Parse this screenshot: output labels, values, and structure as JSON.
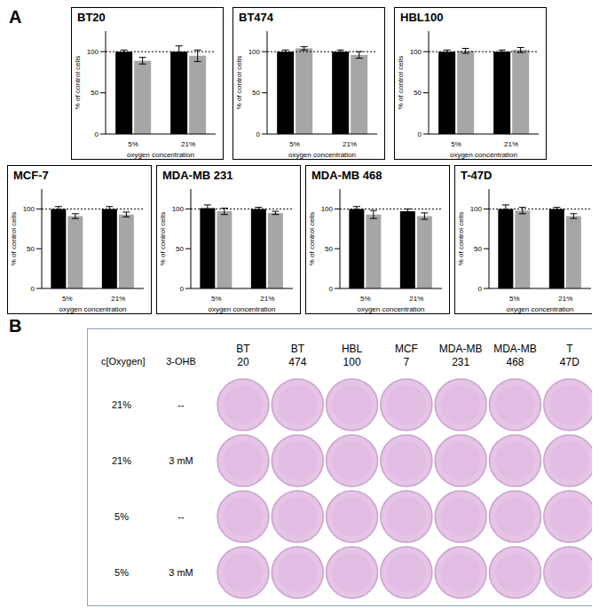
{
  "panel_labels": [
    "A",
    "B"
  ],
  "chart_data": [
    {
      "type": "bar",
      "title": "BT20",
      "categories": [
        "5%",
        "21%"
      ],
      "series": [
        {
          "color": "#000000",
          "values": [
            100,
            100
          ],
          "errors": [
            2,
            7
          ]
        },
        {
          "color": "#a6a6a6",
          "values": [
            89,
            95
          ],
          "errors": [
            4,
            7
          ]
        }
      ],
      "ylim": [
        0,
        125
      ],
      "yticks": [
        0,
        50,
        100
      ],
      "ylabel": "% of control cells",
      "xlabel": "oxygen concentration",
      "reference_line": 100
    },
    {
      "type": "bar",
      "title": "BT474",
      "categories": [
        "5%",
        "21%"
      ],
      "series": [
        {
          "color": "#000000",
          "values": [
            100,
            100
          ],
          "errors": [
            2,
            2
          ]
        },
        {
          "color": "#a6a6a6",
          "values": [
            104,
            96
          ],
          "errors": [
            2,
            4
          ]
        }
      ],
      "ylim": [
        0,
        125
      ],
      "yticks": [
        0,
        50,
        100
      ],
      "ylabel": "% of control cells",
      "xlabel": "oxygen concentration",
      "reference_line": 100
    },
    {
      "type": "bar",
      "title": "HBL100",
      "categories": [
        "5%",
        "21%"
      ],
      "series": [
        {
          "color": "#000000",
          "values": [
            100,
            100
          ],
          "errors": [
            2,
            2
          ]
        },
        {
          "color": "#a6a6a6",
          "values": [
            101,
            102
          ],
          "errors": [
            3,
            3
          ]
        }
      ],
      "ylim": [
        0,
        125
      ],
      "yticks": [
        0,
        50,
        100
      ],
      "ylabel": "% of control cells",
      "xlabel": "oxygen concentration",
      "reference_line": 100
    },
    {
      "type": "bar",
      "title": "MCF-7",
      "categories": [
        "5%",
        "21%"
      ],
      "series": [
        {
          "color": "#000000",
          "values": [
            100,
            100
          ],
          "errors": [
            3,
            3
          ]
        },
        {
          "color": "#a6a6a6",
          "values": [
            91,
            93
          ],
          "errors": [
            3,
            3
          ]
        }
      ],
      "ylim": [
        0,
        125
      ],
      "yticks": [
        0,
        50,
        100
      ],
      "ylabel": "% of control cells",
      "xlabel": "oxygen concentration",
      "reference_line": 100
    },
    {
      "type": "bar",
      "title": "MDA-MB 231",
      "categories": [
        "5%",
        "21%"
      ],
      "series": [
        {
          "color": "#000000",
          "values": [
            101,
            100
          ],
          "errors": [
            4,
            2
          ]
        },
        {
          "color": "#a6a6a6",
          "values": [
            97,
            95
          ],
          "errors": [
            4,
            2
          ]
        }
      ],
      "ylim": [
        0,
        125
      ],
      "yticks": [
        0,
        50,
        100
      ],
      "ylabel": "% of control cells",
      "xlabel": "oxygen concentration",
      "reference_line": 100
    },
    {
      "type": "bar",
      "title": "MDA-MB 468",
      "categories": [
        "5%",
        "21%"
      ],
      "series": [
        {
          "color": "#000000",
          "values": [
            100,
            97
          ],
          "errors": [
            3,
            3
          ]
        },
        {
          "color": "#a6a6a6",
          "values": [
            93,
            91
          ],
          "errors": [
            5,
            4
          ]
        }
      ],
      "ylim": [
        0,
        125
      ],
      "yticks": [
        0,
        50,
        100
      ],
      "ylabel": "% of control cells",
      "xlabel": "oxygen concentration",
      "reference_line": 100
    },
    {
      "type": "bar",
      "title": "T-47D",
      "categories": [
        "5%",
        "21%"
      ],
      "series": [
        {
          "color": "#000000",
          "values": [
            100,
            100
          ],
          "errors": [
            5,
            2
          ]
        },
        {
          "color": "#a6a6a6",
          "values": [
            98,
            91
          ],
          "errors": [
            4,
            3
          ]
        }
      ],
      "ylim": [
        0,
        125
      ],
      "yticks": [
        0,
        50,
        100
      ],
      "ylabel": "% of control cells",
      "xlabel": "oxygen concentration",
      "reference_line": 100
    }
  ],
  "panel_b": {
    "row_header": [
      "c[Oxygen]",
      "3-OHB"
    ],
    "columns": [
      [
        "BT",
        "20"
      ],
      [
        "BT",
        "474"
      ],
      [
        "HBL",
        "100"
      ],
      [
        "MCF",
        "7"
      ],
      [
        "MDA-MB",
        "231"
      ],
      [
        "MDA-MB",
        "468"
      ],
      [
        "T",
        "47D"
      ]
    ],
    "rows": [
      [
        "21%",
        "--"
      ],
      [
        "21%",
        "3 mM"
      ],
      [
        "5%",
        "--"
      ],
      [
        "5%",
        "3 mM"
      ]
    ]
  }
}
